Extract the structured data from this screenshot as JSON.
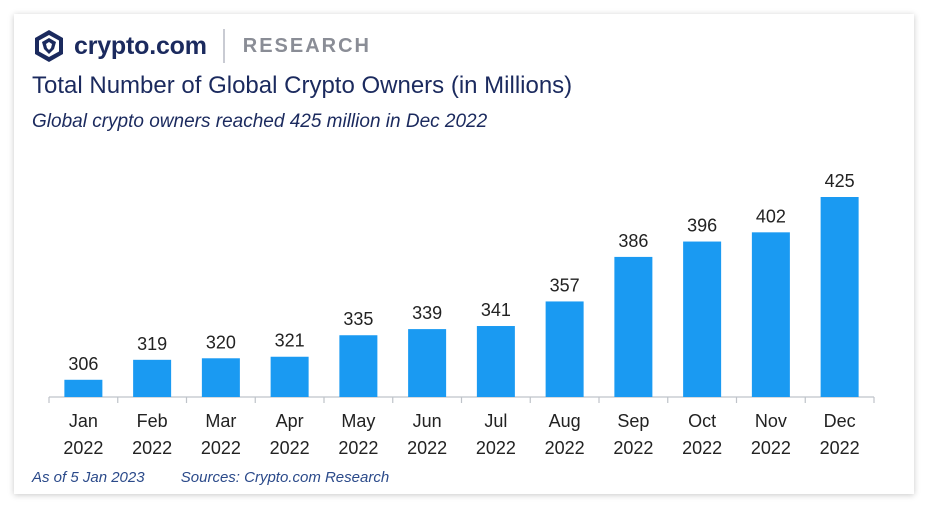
{
  "brand": {
    "name": "crypto.com",
    "section": "RESEARCH",
    "colors": {
      "brand": "#1b2a5e",
      "bar": "#1a9af2",
      "muted": "#8a8d96"
    }
  },
  "header": {
    "title": "Total Number of Global Crypto Owners (in Millions)",
    "subtitle": "Global crypto owners reached 425 million in Dec 2022"
  },
  "chart_data": {
    "type": "bar",
    "title": "Total Number of Global Crypto Owners (in Millions)",
    "subtitle": "Global crypto owners reached 425 million in Dec 2022",
    "categories": [
      [
        "Jan",
        "2022"
      ],
      [
        "Feb",
        "2022"
      ],
      [
        "Mar",
        "2022"
      ],
      [
        "Apr",
        "2022"
      ],
      [
        "May",
        "2022"
      ],
      [
        "Jun",
        "2022"
      ],
      [
        "Jul",
        "2022"
      ],
      [
        "Aug",
        "2022"
      ],
      [
        "Sep",
        "2022"
      ],
      [
        "Oct",
        "2022"
      ],
      [
        "Nov",
        "2022"
      ],
      [
        "Dec",
        "2022"
      ]
    ],
    "values": [
      306,
      319,
      320,
      321,
      335,
      339,
      341,
      357,
      386,
      396,
      402,
      425
    ],
    "xlabel": "",
    "ylabel": "",
    "ylim": [
      300,
      425
    ],
    "grid": false,
    "legend": "none"
  },
  "footer": {
    "as_of": "As of 5 Jan 2023",
    "sources": "Sources: Crypto.com Research"
  }
}
